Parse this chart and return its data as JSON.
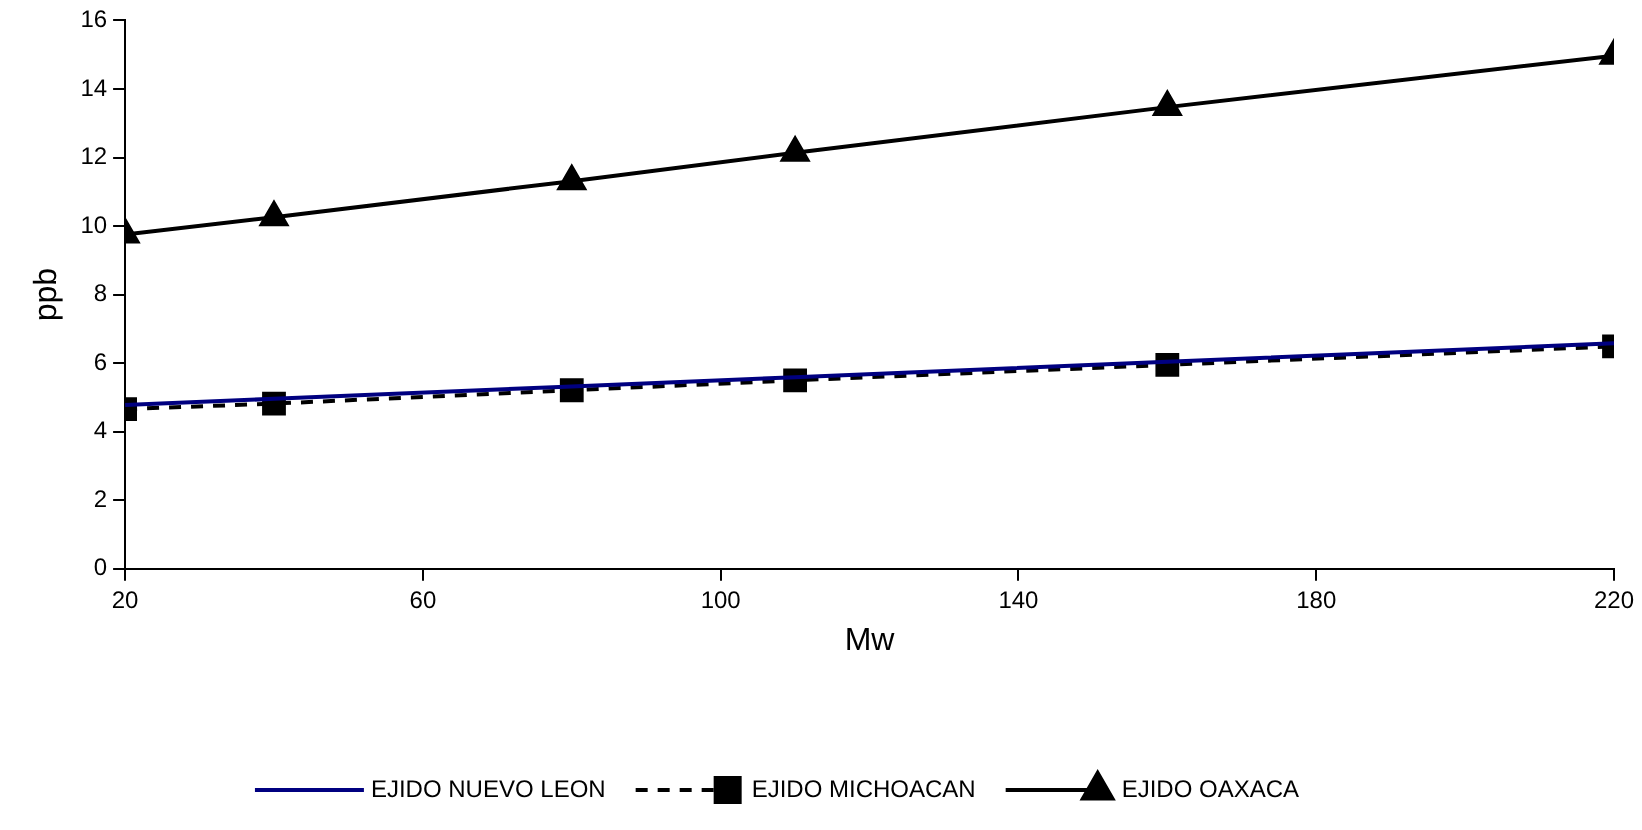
{
  "chart_data": {
    "type": "line",
    "xlabel": "Mw",
    "ylabel": "ppb",
    "x": [
      20,
      40,
      80,
      110,
      160,
      220
    ],
    "xlim": [
      20,
      220
    ],
    "xticks": [
      20,
      60,
      100,
      140,
      180,
      220
    ],
    "ylim": [
      0,
      16
    ],
    "yticks": [
      0,
      2,
      4,
      6,
      8,
      10,
      12,
      14,
      16
    ],
    "grid": false,
    "legend": "bottom",
    "series": [
      {
        "name": "EJIDO NUEVO LEON",
        "color": "#000080",
        "values": [
          4.78,
          4.96,
          5.32,
          5.59,
          6.04,
          6.58
        ],
        "marker": "none",
        "line_style": "solid"
      },
      {
        "name": "EJIDO MICHOACAN",
        "color": "#000000",
        "values": [
          4.66,
          4.82,
          5.21,
          5.5,
          5.95,
          6.49
        ],
        "marker": "square",
        "line_style": "dashed"
      },
      {
        "name": "EJIDO OAXACA",
        "color": "#000000",
        "values": [
          9.75,
          10.26,
          11.31,
          12.14,
          13.47,
          14.97
        ],
        "marker": "triangle",
        "line_style": "solid"
      }
    ]
  }
}
